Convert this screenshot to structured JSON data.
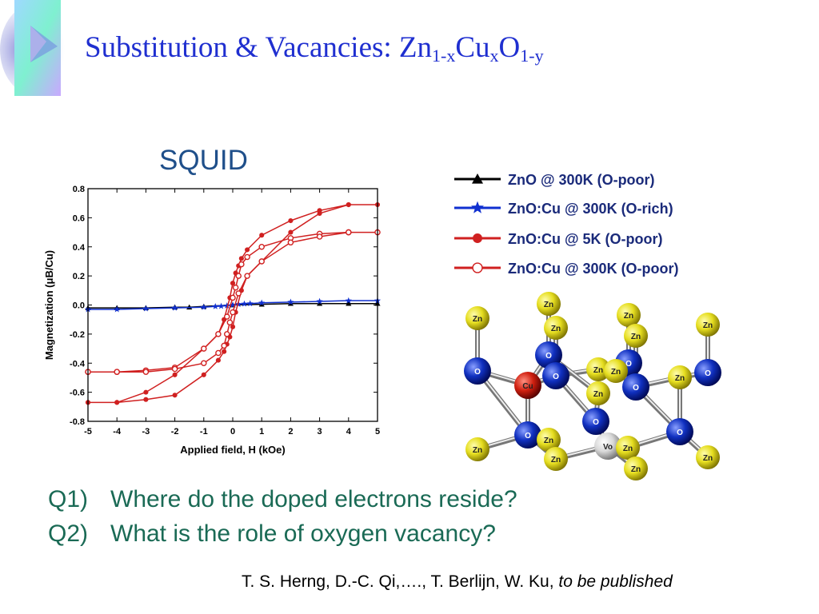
{
  "title": {
    "main": "Substitution & Vacancies: Zn",
    "sub1": "1-x",
    "mid": "Cu",
    "sub2": "x",
    "o": "O",
    "sub3": "1-y"
  },
  "squid_label": "SQUID",
  "chart_data": {
    "type": "line",
    "xlabel": "Applied field, H (kOe)",
    "ylabel": "Magnetization (μB/Cu)",
    "xlim": [
      -5,
      5
    ],
    "ylim": [
      -0.8,
      0.8
    ],
    "xticks": [
      "-5",
      "-4",
      "-3",
      "-2",
      "-1",
      "0",
      "1",
      "2",
      "3",
      "4",
      "5"
    ],
    "yticks": [
      "-0.8",
      "-0.6",
      "-0.4",
      "-0.2",
      "0.0",
      "0.2",
      "0.4",
      "0.6",
      "0.8"
    ],
    "series": [
      {
        "name": "ZnO @ 300K (O-poor)",
        "color": "#000000",
        "marker": "triangle",
        "x": [
          -5,
          -4,
          -3,
          -2,
          -1.5,
          -1,
          0,
          1,
          2,
          3,
          4,
          5
        ],
        "y": [
          -0.02,
          -0.02,
          -0.02,
          -0.015,
          -0.015,
          -0.01,
          0.0,
          0.005,
          0.01,
          0.01,
          0.01,
          0.01
        ]
      },
      {
        "name": "ZnO:Cu @ 300K (O-rich)",
        "color": "#1030d0",
        "marker": "star",
        "x": [
          -5,
          -4,
          -3,
          -2,
          -1,
          -0.6,
          -0.4,
          -0.2,
          0,
          0.2,
          0.4,
          0.6,
          1,
          2,
          3,
          4,
          5
        ],
        "y": [
          -0.03,
          -0.03,
          -0.025,
          -0.02,
          -0.015,
          -0.01,
          -0.008,
          -0.005,
          0.0,
          0.005,
          0.008,
          0.01,
          0.015,
          0.02,
          0.025,
          0.03,
          0.03
        ]
      },
      {
        "name": "ZnO:Cu @ 5K (O-poor)",
        "color": "#d02020",
        "marker": "filled-circle",
        "x": [
          -5,
          -4,
          -3,
          -2,
          -1,
          -0.5,
          -0.3,
          -0.1,
          0,
          0.1,
          0.2,
          0.3,
          0.5,
          1,
          2,
          3,
          4,
          5,
          4,
          3,
          2,
          1,
          0.5,
          0.3,
          0.1,
          0,
          -0.1,
          -0.2,
          -0.3,
          -0.5,
          -1,
          -2,
          -3,
          -4,
          -5
        ],
        "y": [
          -0.67,
          -0.67,
          -0.6,
          -0.48,
          -0.3,
          -0.2,
          -0.1,
          0.05,
          0.15,
          0.22,
          0.27,
          0.32,
          0.38,
          0.48,
          0.58,
          0.65,
          0.69,
          0.69,
          0.69,
          0.63,
          0.5,
          0.3,
          0.2,
          0.1,
          -0.05,
          -0.15,
          -0.22,
          -0.27,
          -0.32,
          -0.38,
          -0.48,
          -0.62,
          -0.65,
          -0.67,
          -0.67
        ]
      },
      {
        "name": "ZnO:Cu @ 300K (O-poor)",
        "color": "#d02020",
        "marker": "open-circle",
        "x": [
          -5,
          -4,
          -3,
          -2,
          -1,
          -0.5,
          -0.2,
          0,
          0.1,
          0.2,
          0.3,
          0.5,
          1,
          2,
          3,
          4,
          5,
          4,
          3,
          2,
          1,
          0.5,
          0.2,
          0,
          -0.1,
          -0.2,
          -0.3,
          -0.5,
          -1,
          -2,
          -3,
          -4,
          -5
        ],
        "y": [
          -0.46,
          -0.46,
          -0.45,
          -0.43,
          -0.3,
          -0.2,
          -0.08,
          0.05,
          0.12,
          0.2,
          0.28,
          0.33,
          0.4,
          0.46,
          0.49,
          0.5,
          0.5,
          0.5,
          0.47,
          0.43,
          0.3,
          0.2,
          0.08,
          -0.05,
          -0.12,
          -0.2,
          -0.28,
          -0.33,
          -0.4,
          -0.44,
          -0.46,
          -0.46,
          -0.46
        ]
      }
    ]
  },
  "legend": [
    {
      "label": "ZnO @ 300K (O-poor)",
      "color": "#000000",
      "marker": "triangle"
    },
    {
      "label": "ZnO:Cu @ 300K (O-rich)",
      "color": "#1030d0",
      "marker": "star"
    },
    {
      "label": "ZnO:Cu @ 5K (O-poor)",
      "color": "#d02020",
      "marker": "filled-circle"
    },
    {
      "label": "ZnO:Cu @ 300K (O-poor)",
      "color": "#d02020",
      "marker": "open-circle"
    }
  ],
  "crystal": {
    "labels": {
      "zn": "Zn",
      "o": "O",
      "cu": "Cu",
      "vo": "Vo"
    },
    "colors": {
      "zn": "#e8e020",
      "o": "#1030c0",
      "cu": "#d02010",
      "vo": "#e0e0e0"
    }
  },
  "questions": [
    {
      "num": "Q1)",
      "text": "Where do the doped electrons reside?"
    },
    {
      "num": "Q2)",
      "text": "What is the role of oxygen vacancy?"
    }
  ],
  "citation": {
    "authors": "T. S. Herng, D.-C. Qi,…., T. Berlijn, W. Ku, ",
    "status": "to be published"
  }
}
